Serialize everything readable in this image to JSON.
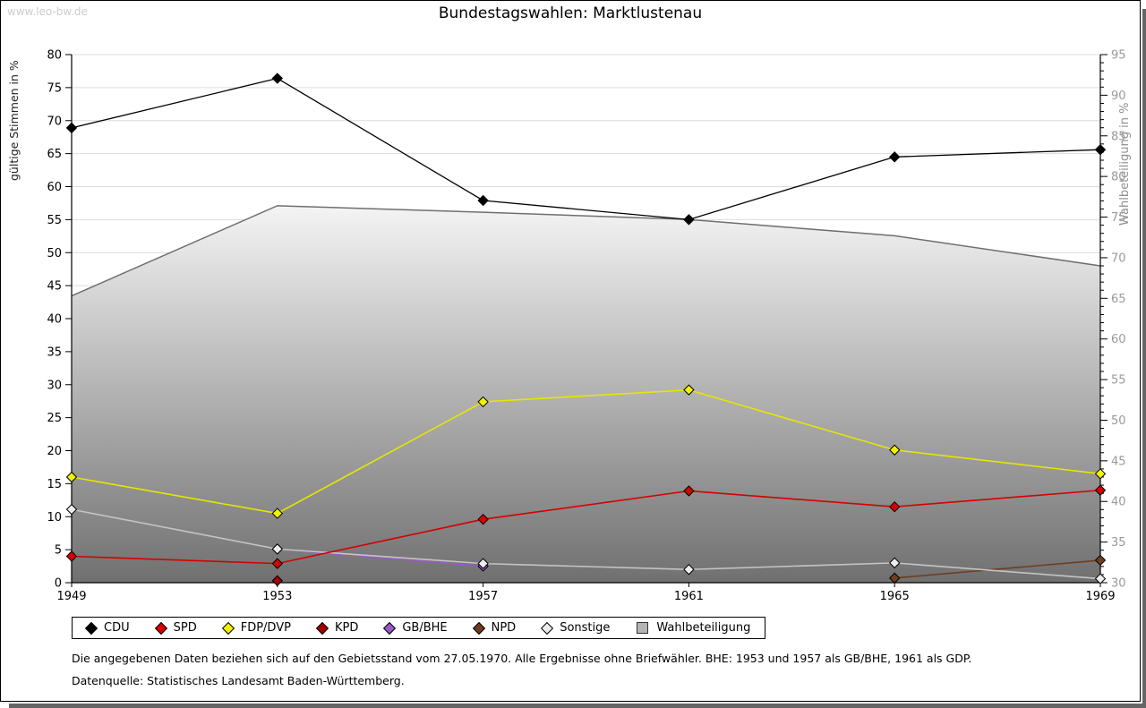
{
  "header": {
    "watermark": "www.leo-bw.de",
    "title": "Bundestagswahlen: Marktlustenau"
  },
  "chart_data": {
    "type": "line",
    "categories": [
      "1949",
      "1953",
      "1957",
      "1961",
      "1965",
      "1969"
    ],
    "left_axis": {
      "title": "gültige Stimmen in %",
      "min": 0,
      "max": 80,
      "step": 5
    },
    "right_axis": {
      "title": "Wahlbeteiligung in %",
      "min": 30,
      "max": 95,
      "step": 5,
      "minor_step": 1
    },
    "grid": true,
    "legend_position": "bottom",
    "series": [
      {
        "name": "Wahlbeteiligung",
        "axis": "right",
        "style": "area",
        "marker": "square",
        "line_color": "#6f6f6f",
        "fill_top": "#f4f4f4",
        "fill_bottom": "#707070",
        "legend_fill": "#b4b4b4",
        "values": [
          65.3,
          76.4,
          75.6,
          74.7,
          72.7,
          69.0
        ]
      },
      {
        "name": "GB/BHE",
        "axis": "left",
        "style": "line",
        "marker": "diamond",
        "color": "#9b59c8",
        "values": [
          null,
          5.1,
          2.5,
          null,
          null,
          null
        ]
      },
      {
        "name": "NPD",
        "axis": "left",
        "style": "line",
        "marker": "diamond",
        "color": "#6e3d20",
        "values": [
          null,
          null,
          null,
          null,
          0.7,
          3.4
        ]
      },
      {
        "name": "KPD",
        "axis": "left",
        "style": "line",
        "marker": "diamond",
        "color": "#a00000",
        "values": [
          null,
          0.3,
          null,
          null,
          null,
          null
        ]
      },
      {
        "name": "Sonstige",
        "axis": "left",
        "style": "line",
        "marker": "diamond",
        "color": "#c4c4c4",
        "marker_fill": "#ededed",
        "values": [
          11.1,
          5.1,
          2.9,
          2.0,
          3.0,
          0.6
        ]
      },
      {
        "name": "SPD",
        "axis": "left",
        "style": "line",
        "marker": "diamond",
        "color": "#d60000",
        "values": [
          4.0,
          2.9,
          9.6,
          13.9,
          11.5,
          14.0
        ]
      },
      {
        "name": "FDP/DVP",
        "axis": "left",
        "style": "line",
        "marker": "diamond",
        "color": "#e6e600",
        "marker_fill": "#f2f200",
        "values": [
          16.0,
          10.5,
          27.4,
          29.2,
          20.1,
          16.5
        ]
      },
      {
        "name": "CDU",
        "axis": "left",
        "style": "line",
        "marker": "diamond",
        "color": "#000000",
        "values": [
          68.9,
          76.4,
          57.9,
          55.0,
          64.5,
          65.6
        ]
      }
    ],
    "legend_order": [
      "CDU",
      "SPD",
      "FDP/DVP",
      "KPD",
      "GB/BHE",
      "NPD",
      "Sonstige",
      "Wahlbeteiligung"
    ]
  },
  "footer": {
    "note1": "Die angegebenen Daten beziehen sich auf den Gebietsstand vom 27.05.1970. Alle Ergebnisse ohne Briefwähler. BHE: 1953 und 1957 als GB/BHE, 1961 als GDP.",
    "note2": "Datenquelle: Statistisches Landesamt Baden-Württemberg."
  }
}
